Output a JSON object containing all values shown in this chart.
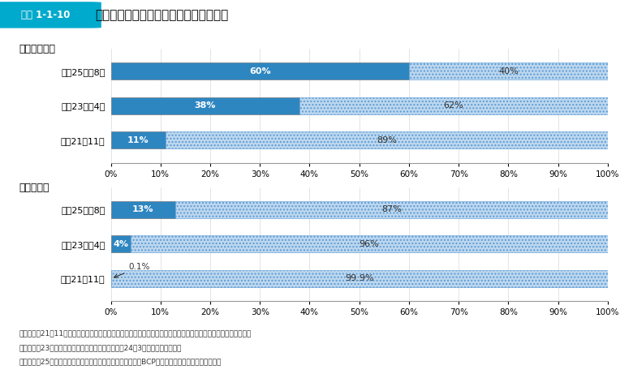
{
  "title_box": "図表 1-1-10",
  "title_text": "地方公共団体の業務継続計画の策定状況",
  "section1_label": "【都道府県】",
  "section2_label": "【市町村】",
  "pref_rows": [
    {
      "label": "平成21年11月",
      "v1": 11,
      "v2": 89,
      "l1": "11%",
      "l2": "89%"
    },
    {
      "label": "平成23年　4月",
      "v1": 38,
      "v2": 62,
      "l1": "38%",
      "l2": "62%"
    },
    {
      "label": "平成25年　8月",
      "v1": 60,
      "v2": 40,
      "l1": "60%",
      "l2": "40%"
    }
  ],
  "city_rows": [
    {
      "label": "平成21年11月",
      "v1": 0.1,
      "v2": 99.9,
      "l1": "0.1%",
      "l2": "99.9%",
      "arrow": true
    },
    {
      "label": "平成23年　4月",
      "v1": 4,
      "v2": 96,
      "l1": "4%",
      "l2": "96%",
      "arrow": false
    },
    {
      "label": "平成25年　8月",
      "v1": 13,
      "v2": 87,
      "l1": "13%",
      "l2": "87%",
      "arrow": false
    }
  ],
  "color_solid": "#2E86C1",
  "color_dotted_face": "#BDD7EE",
  "color_dotted_edge": "#5B9BD5",
  "footnote_lines": [
    "出典：平成21年11月　地震発生時を想定した業務継続体制に係る状況調査（内閣府（防災担当）及び消防庁調査）",
    "　　　平成23年４月　地方自治情報管理概要（平成24年3月）（総務省調査）",
    "　　　平成25年８月　大規模地震等の自然災害を対象とするBCP策定率（速報値）（消防庁調査）"
  ],
  "bar_height": 0.5,
  "title_bg": "#00AACC",
  "title_text_color": "#FFFFFF"
}
